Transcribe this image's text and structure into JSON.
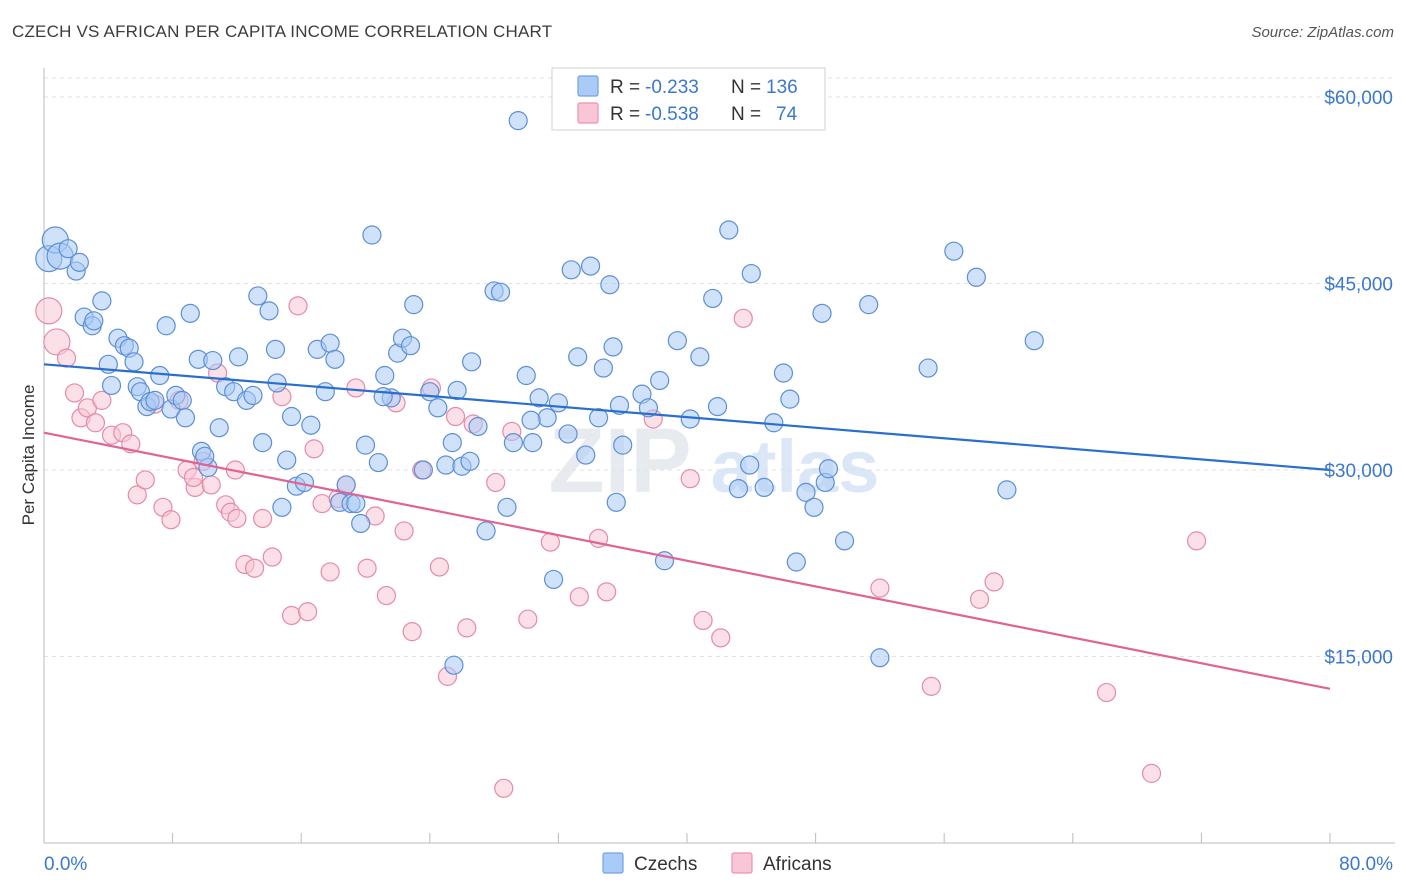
{
  "header": {
    "title": "CZECH VS AFRICAN PER CAPITA INCOME CORRELATION CHART",
    "source": "Source: ZipAtlas.com"
  },
  "watermark": {
    "zip": "ZIP",
    "atlas": "atlas"
  },
  "legend_top": {
    "rows": [
      {
        "r_label": "R =",
        "r_value": "-0.233",
        "n_label": "N =",
        "n_value": "136",
        "color": "#6fa3e8"
      },
      {
        "r_label": "R =",
        "r_value": "-0.538",
        "n_label": "N =",
        "n_value": "74",
        "color": "#f090b0"
      }
    ]
  },
  "legend_bottom": {
    "items": [
      "Czechs",
      "Africans"
    ]
  },
  "chart_data": {
    "type": "scatter",
    "title": "CZECH VS AFRICAN PER CAPITA INCOME CORRELATION CHART",
    "xlabel": "",
    "ylabel": "Per Capita Income",
    "xlim": [
      0,
      80
    ],
    "ylim": [
      0,
      60000
    ],
    "x_tick_labels": [
      "0.0%",
      "80.0%"
    ],
    "y_tick_labels": [
      "$15,000",
      "$30,000",
      "$45,000",
      "$60,000"
    ],
    "y_ticks": [
      15000,
      30000,
      45000,
      60000
    ],
    "grid": "horizontal dashed",
    "legend_position": "top-center and bottom-center",
    "colors": {
      "czechs_fill": "#aacbf5",
      "czechs_stroke": "#5c8fd6",
      "czechs_line": "#2a6fd0",
      "africans_fill": "#f8c6d6",
      "africans_stroke": "#e58aaa",
      "africans_line": "#e06393",
      "axis_label": "#3a78d0"
    },
    "series": [
      {
        "name": "Czechs",
        "stats": {
          "R": -0.233,
          "N": 136
        },
        "trend": {
          "x": [
            0,
            80
          ],
          "y": [
            38500,
            30000
          ]
        },
        "points": [
          [
            0.3,
            47000
          ],
          [
            0.7,
            48500
          ],
          [
            1.0,
            47200
          ],
          [
            1.5,
            47800
          ],
          [
            2.0,
            46000
          ],
          [
            2.2,
            46700
          ],
          [
            2.5,
            42300
          ],
          [
            3.0,
            41600
          ],
          [
            3.1,
            42000
          ],
          [
            3.6,
            43600
          ],
          [
            4.0,
            38500
          ],
          [
            4.2,
            36800
          ],
          [
            4.6,
            40600
          ],
          [
            5.0,
            40000
          ],
          [
            5.3,
            39800
          ],
          [
            5.6,
            38700
          ],
          [
            5.8,
            36700
          ],
          [
            6.0,
            36300
          ],
          [
            6.4,
            35100
          ],
          [
            6.6,
            35500
          ],
          [
            6.9,
            35600
          ],
          [
            7.2,
            37600
          ],
          [
            7.6,
            41600
          ],
          [
            7.9,
            34900
          ],
          [
            8.2,
            36000
          ],
          [
            8.6,
            35600
          ],
          [
            8.8,
            34200
          ],
          [
            9.1,
            42600
          ],
          [
            9.6,
            38900
          ],
          [
            9.8,
            31500
          ],
          [
            10.2,
            30200
          ],
          [
            10.5,
            38800
          ],
          [
            10.9,
            33400
          ],
          [
            11.3,
            36700
          ],
          [
            11.8,
            36300
          ],
          [
            12.1,
            39100
          ],
          [
            12.6,
            35600
          ],
          [
            13.0,
            36000
          ],
          [
            13.3,
            44000
          ],
          [
            13.6,
            32200
          ],
          [
            14.0,
            42800
          ],
          [
            14.4,
            39700
          ],
          [
            14.8,
            27000
          ],
          [
            15.1,
            30800
          ],
          [
            15.4,
            34300
          ],
          [
            15.7,
            28700
          ],
          [
            16.2,
            29000
          ],
          [
            16.6,
            33600
          ],
          [
            17.0,
            39700
          ],
          [
            17.5,
            36300
          ],
          [
            17.8,
            40200
          ],
          [
            18.1,
            38900
          ],
          [
            18.4,
            27400
          ],
          [
            18.8,
            28800
          ],
          [
            19.1,
            27300
          ],
          [
            19.4,
            27300
          ],
          [
            19.7,
            25700
          ],
          [
            20.0,
            32000
          ],
          [
            20.4,
            48900
          ],
          [
            20.8,
            30600
          ],
          [
            21.2,
            37600
          ],
          [
            21.6,
            35800
          ],
          [
            22.0,
            39400
          ],
          [
            22.3,
            40600
          ],
          [
            22.8,
            40000
          ],
          [
            23.0,
            43300
          ],
          [
            23.6,
            30000
          ],
          [
            24.0,
            36300
          ],
          [
            24.5,
            35000
          ],
          [
            25.0,
            30400
          ],
          [
            25.4,
            32200
          ],
          [
            25.7,
            36400
          ],
          [
            26.0,
            30300
          ],
          [
            26.6,
            38700
          ],
          [
            27.0,
            33500
          ],
          [
            27.5,
            25100
          ],
          [
            28.0,
            44400
          ],
          [
            28.4,
            44300
          ],
          [
            28.8,
            27000
          ],
          [
            29.2,
            32200
          ],
          [
            29.5,
            58100
          ],
          [
            30.0,
            37600
          ],
          [
            30.4,
            32200
          ],
          [
            30.8,
            35800
          ],
          [
            31.3,
            34200
          ],
          [
            31.7,
            21200
          ],
          [
            32.0,
            35400
          ],
          [
            32.6,
            32900
          ],
          [
            32.8,
            46100
          ],
          [
            33.2,
            39100
          ],
          [
            33.7,
            31200
          ],
          [
            34.0,
            46400
          ],
          [
            34.5,
            34200
          ],
          [
            34.8,
            38200
          ],
          [
            35.2,
            44900
          ],
          [
            35.6,
            27400
          ],
          [
            35.8,
            35200
          ],
          [
            36.0,
            32000
          ],
          [
            37.2,
            36100
          ],
          [
            37.6,
            35000
          ],
          [
            38.3,
            37200
          ],
          [
            38.6,
            22700
          ],
          [
            39.4,
            40400
          ],
          [
            40.2,
            34100
          ],
          [
            40.8,
            39100
          ],
          [
            41.6,
            43800
          ],
          [
            41.9,
            35100
          ],
          [
            42.6,
            49300
          ],
          [
            43.2,
            28500
          ],
          [
            43.9,
            30400
          ],
          [
            44.0,
            45800
          ],
          [
            44.8,
            28600
          ],
          [
            45.4,
            33800
          ],
          [
            46.0,
            37800
          ],
          [
            46.4,
            35700
          ],
          [
            46.8,
            22600
          ],
          [
            47.4,
            28200
          ],
          [
            47.9,
            27000
          ],
          [
            48.4,
            42600
          ],
          [
            48.6,
            29000
          ],
          [
            48.8,
            30100
          ],
          [
            49.8,
            24300
          ],
          [
            51.3,
            43300
          ],
          [
            52.0,
            14900
          ],
          [
            55.0,
            38200
          ],
          [
            56.6,
            47600
          ],
          [
            58.0,
            45500
          ],
          [
            59.9,
            28400
          ],
          [
            61.6,
            40400
          ],
          [
            25.5,
            14300
          ],
          [
            21.1,
            35900
          ],
          [
            26.5,
            30700
          ],
          [
            14.5,
            37000
          ],
          [
            30.3,
            34000
          ],
          [
            35.4,
            39900
          ],
          [
            10.0,
            31100
          ]
        ]
      },
      {
        "name": "Africans",
        "stats": {
          "R": -0.538,
          "N": 74
        },
        "trend": {
          "x": [
            0,
            80
          ],
          "y": [
            33000,
            12400
          ]
        },
        "points": [
          [
            0.3,
            42800
          ],
          [
            0.8,
            40300
          ],
          [
            1.4,
            39000
          ],
          [
            1.9,
            36200
          ],
          [
            2.3,
            34200
          ],
          [
            2.7,
            35000
          ],
          [
            3.2,
            33800
          ],
          [
            3.6,
            35600
          ],
          [
            4.2,
            32800
          ],
          [
            4.9,
            33000
          ],
          [
            5.4,
            32100
          ],
          [
            5.8,
            28000
          ],
          [
            6.3,
            29200
          ],
          [
            6.9,
            35300
          ],
          [
            7.4,
            27000
          ],
          [
            7.9,
            26000
          ],
          [
            8.4,
            35600
          ],
          [
            8.9,
            30000
          ],
          [
            9.4,
            28600
          ],
          [
            9.9,
            30700
          ],
          [
            10.4,
            28800
          ],
          [
            10.8,
            37800
          ],
          [
            11.3,
            27200
          ],
          [
            11.6,
            26600
          ],
          [
            12.0,
            26100
          ],
          [
            12.5,
            22400
          ],
          [
            13.1,
            22100
          ],
          [
            13.6,
            26100
          ],
          [
            14.2,
            23000
          ],
          [
            14.8,
            35900
          ],
          [
            15.4,
            18300
          ],
          [
            15.8,
            43200
          ],
          [
            16.4,
            18600
          ],
          [
            16.8,
            31700
          ],
          [
            17.3,
            27300
          ],
          [
            17.8,
            21800
          ],
          [
            18.3,
            27700
          ],
          [
            18.8,
            28800
          ],
          [
            19.4,
            36600
          ],
          [
            20.1,
            22100
          ],
          [
            20.6,
            26300
          ],
          [
            21.3,
            19900
          ],
          [
            21.9,
            35400
          ],
          [
            22.4,
            25100
          ],
          [
            22.9,
            17000
          ],
          [
            23.5,
            30000
          ],
          [
            24.1,
            36600
          ],
          [
            24.6,
            22200
          ],
          [
            25.1,
            13400
          ],
          [
            25.6,
            34300
          ],
          [
            26.3,
            17300
          ],
          [
            26.7,
            33700
          ],
          [
            28.1,
            29000
          ],
          [
            28.6,
            4400
          ],
          [
            29.1,
            33100
          ],
          [
            30.1,
            18000
          ],
          [
            31.5,
            24200
          ],
          [
            33.3,
            19800
          ],
          [
            34.5,
            24500
          ],
          [
            35.0,
            20200
          ],
          [
            37.9,
            34100
          ],
          [
            40.2,
            29300
          ],
          [
            41.0,
            17900
          ],
          [
            42.1,
            16500
          ],
          [
            43.5,
            42200
          ],
          [
            52.0,
            20500
          ],
          [
            55.2,
            12600
          ],
          [
            58.2,
            19600
          ],
          [
            59.1,
            21000
          ],
          [
            66.1,
            12100
          ],
          [
            71.7,
            24300
          ],
          [
            68.9,
            5600
          ],
          [
            9.3,
            29400
          ],
          [
            11.9,
            30000
          ]
        ]
      }
    ]
  }
}
